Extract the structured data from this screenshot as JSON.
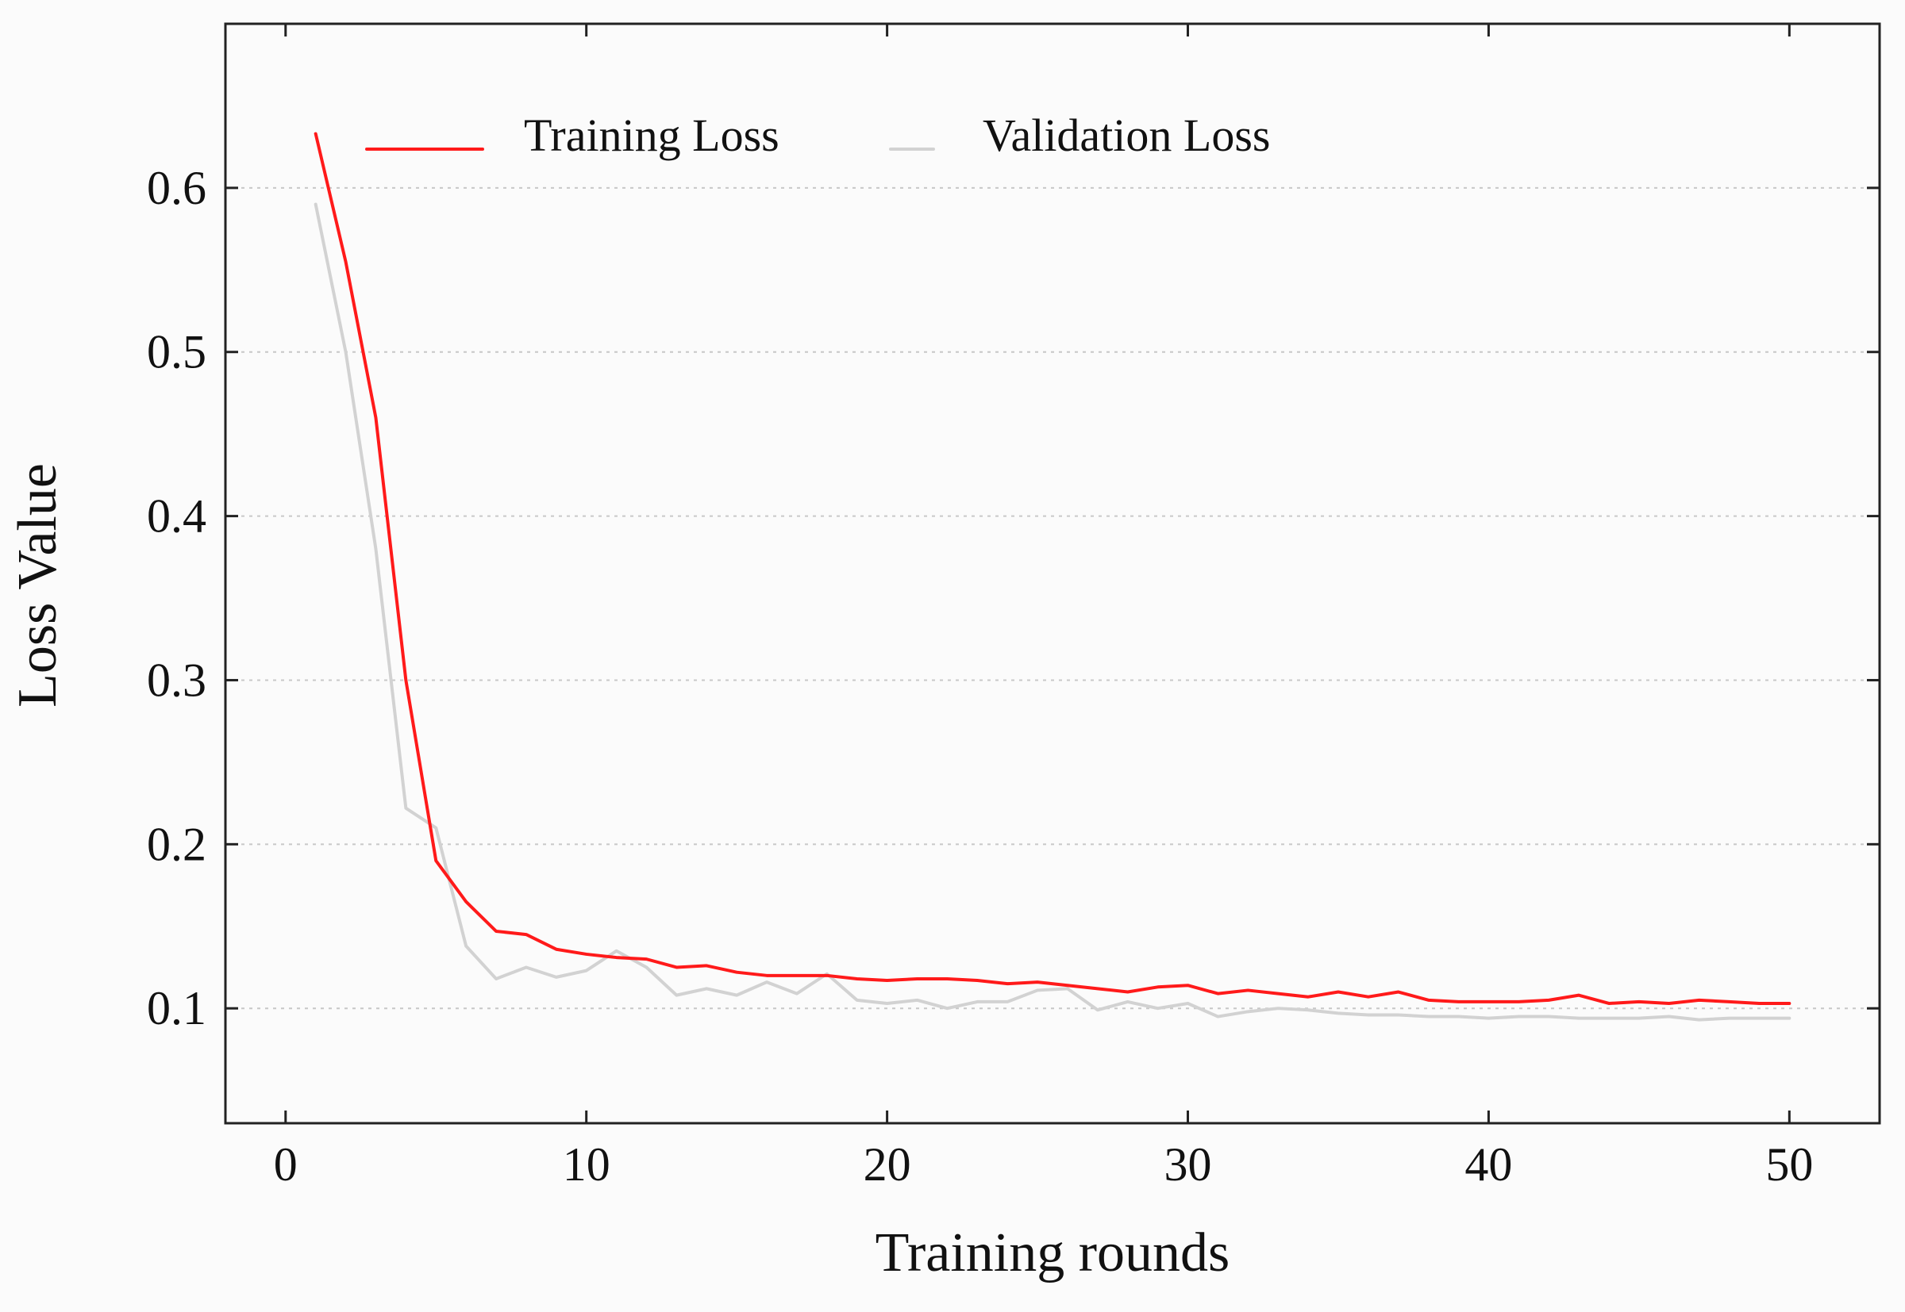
{
  "chart_data": {
    "type": "line",
    "title": "",
    "xlabel": "Training rounds",
    "ylabel": "Loss Value",
    "xlim": [
      -2,
      53
    ],
    "ylim": [
      0.03,
      0.7
    ],
    "xticks": [
      0,
      10,
      20,
      30,
      40,
      50
    ],
    "xtick_labels": [
      "0",
      "10",
      "20",
      "30",
      "40",
      "50"
    ],
    "yticks": [
      0.1,
      0.2,
      0.3,
      0.4,
      0.5,
      0.6
    ],
    "ytick_labels": [
      "0.1",
      "0.2",
      "0.3",
      "0.4",
      "0.5",
      "0.6"
    ],
    "grid": {
      "horizontal": true,
      "vertical": false
    },
    "legend": {
      "placement": "top-left",
      "entries": [
        "Training Loss",
        "Validation Loss"
      ]
    },
    "series": [
      {
        "name": "Training Loss",
        "color": "#ff1a1a",
        "x": [
          1,
          2,
          3,
          4,
          5,
          6,
          7,
          8,
          9,
          10,
          11,
          12,
          13,
          14,
          15,
          16,
          17,
          18,
          19,
          20,
          21,
          22,
          23,
          24,
          25,
          26,
          27,
          28,
          29,
          30,
          31,
          32,
          33,
          34,
          35,
          36,
          37,
          38,
          39,
          40,
          41,
          42,
          43,
          44,
          45,
          46,
          47,
          48,
          49,
          50
        ],
        "values": [
          0.633,
          0.555,
          0.46,
          0.3,
          0.19,
          0.165,
          0.147,
          0.145,
          0.136,
          0.133,
          0.131,
          0.13,
          0.125,
          0.126,
          0.122,
          0.12,
          0.12,
          0.12,
          0.118,
          0.117,
          0.118,
          0.118,
          0.117,
          0.115,
          0.116,
          0.114,
          0.112,
          0.11,
          0.113,
          0.114,
          0.109,
          0.111,
          0.109,
          0.107,
          0.11,
          0.107,
          0.11,
          0.105,
          0.104,
          0.104,
          0.104,
          0.105,
          0.108,
          0.103,
          0.104,
          0.103,
          0.105,
          0.104,
          0.103,
          0.103
        ]
      },
      {
        "name": "Validation Loss",
        "color": "#d2d2d2",
        "x": [
          1,
          2,
          3,
          4,
          5,
          6,
          7,
          8,
          9,
          10,
          11,
          12,
          13,
          14,
          15,
          16,
          17,
          18,
          19,
          20,
          21,
          22,
          23,
          24,
          25,
          26,
          27,
          28,
          29,
          30,
          31,
          32,
          33,
          34,
          35,
          36,
          37,
          38,
          39,
          40,
          41,
          42,
          43,
          44,
          45,
          46,
          47,
          48,
          49,
          50
        ],
        "values": [
          0.59,
          0.5,
          0.38,
          0.222,
          0.21,
          0.138,
          0.118,
          0.125,
          0.119,
          0.123,
          0.135,
          0.125,
          0.108,
          0.112,
          0.108,
          0.116,
          0.109,
          0.121,
          0.105,
          0.103,
          0.105,
          0.1,
          0.104,
          0.104,
          0.111,
          0.112,
          0.099,
          0.104,
          0.1,
          0.103,
          0.095,
          0.098,
          0.1,
          0.099,
          0.097,
          0.096,
          0.096,
          0.095,
          0.095,
          0.094,
          0.095,
          0.095,
          0.094,
          0.094,
          0.094,
          0.095,
          0.093,
          0.094,
          0.094,
          0.094
        ]
      }
    ]
  }
}
